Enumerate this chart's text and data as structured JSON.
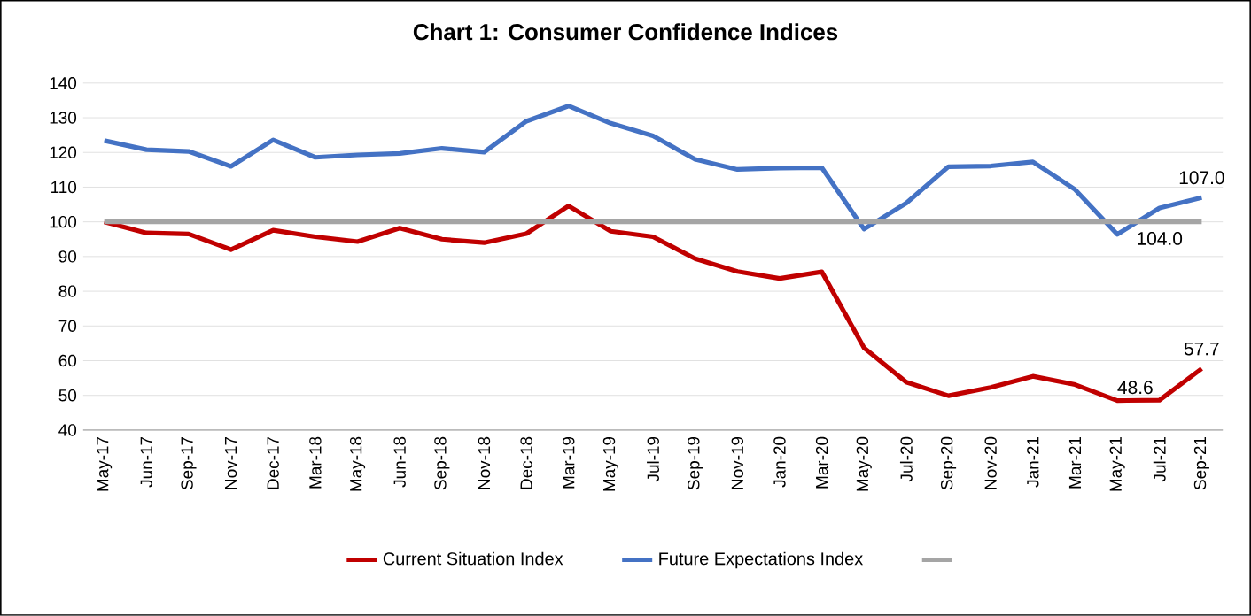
{
  "chart_data": {
    "type": "line",
    "title": "Chart 1: Consumer Confidence Indices",
    "categories": [
      "May-17",
      "Jun-17",
      "Sep-17",
      "Nov-17",
      "Dec-17",
      "Mar-18",
      "May-18",
      "Jun-18",
      "Sep-18",
      "Nov-18",
      "Dec-18",
      "Mar-19",
      "May-19",
      "Jul-19",
      "Sep-19",
      "Nov-19",
      "Jan-20",
      "Mar-20",
      "May-20",
      "Jul-20",
      "Sep-20",
      "Nov-20",
      "Jan-21",
      "Mar-21",
      "May-21",
      "Jul-21",
      "Sep-21"
    ],
    "series": [
      {
        "name": "Current Situation Index",
        "color": "#c00000",
        "values": [
          100,
          96.8,
          96.5,
          92,
          97.6,
          95.7,
          94.3,
          98.2,
          95,
          94,
          96.6,
          104.6,
          97.3,
          95.7,
          89.4,
          85.7,
          83.7,
          85.6,
          63.7,
          53.8,
          49.9,
          52.3,
          55.5,
          53.1,
          48.5,
          48.6,
          57.7
        ],
        "value_labels": [
          null,
          null,
          null,
          null,
          null,
          null,
          null,
          null,
          null,
          null,
          null,
          null,
          null,
          null,
          null,
          null,
          null,
          null,
          null,
          null,
          null,
          null,
          null,
          null,
          null,
          "48.6",
          "57.7"
        ]
      },
      {
        "name": "Future Expectations Index",
        "color": "#4472c4",
        "values": [
          123.4,
          120.8,
          120.3,
          116,
          123.6,
          118.6,
          119.3,
          119.7,
          121.2,
          120.1,
          129,
          133.4,
          128.4,
          124.8,
          118,
          115.1,
          115.5,
          115.6,
          97.9,
          105.4,
          115.9,
          116.1,
          117.3,
          109.3,
          96.4,
          104.0,
          107.0
        ],
        "value_labels": [
          null,
          null,
          null,
          null,
          null,
          null,
          null,
          null,
          null,
          null,
          null,
          null,
          null,
          null,
          null,
          null,
          null,
          null,
          null,
          null,
          null,
          null,
          null,
          null,
          null,
          "104.0",
          "107.0"
        ]
      },
      {
        "color": "#a5a5a5",
        "values": [
          100,
          100,
          100,
          100,
          100,
          100,
          100,
          100,
          100,
          100,
          100,
          100,
          100,
          100,
          100,
          100,
          100,
          100,
          100,
          100,
          100,
          100,
          100,
          100,
          100,
          100,
          100
        ]
      }
    ],
    "ylim": [
      40,
      140
    ],
    "yticks": [
      40,
      50,
      60,
      70,
      80,
      90,
      100,
      110,
      120,
      130,
      140
    ],
    "grid": "y",
    "legend": "bottom",
    "marker": "none",
    "line_style": "solid"
  }
}
